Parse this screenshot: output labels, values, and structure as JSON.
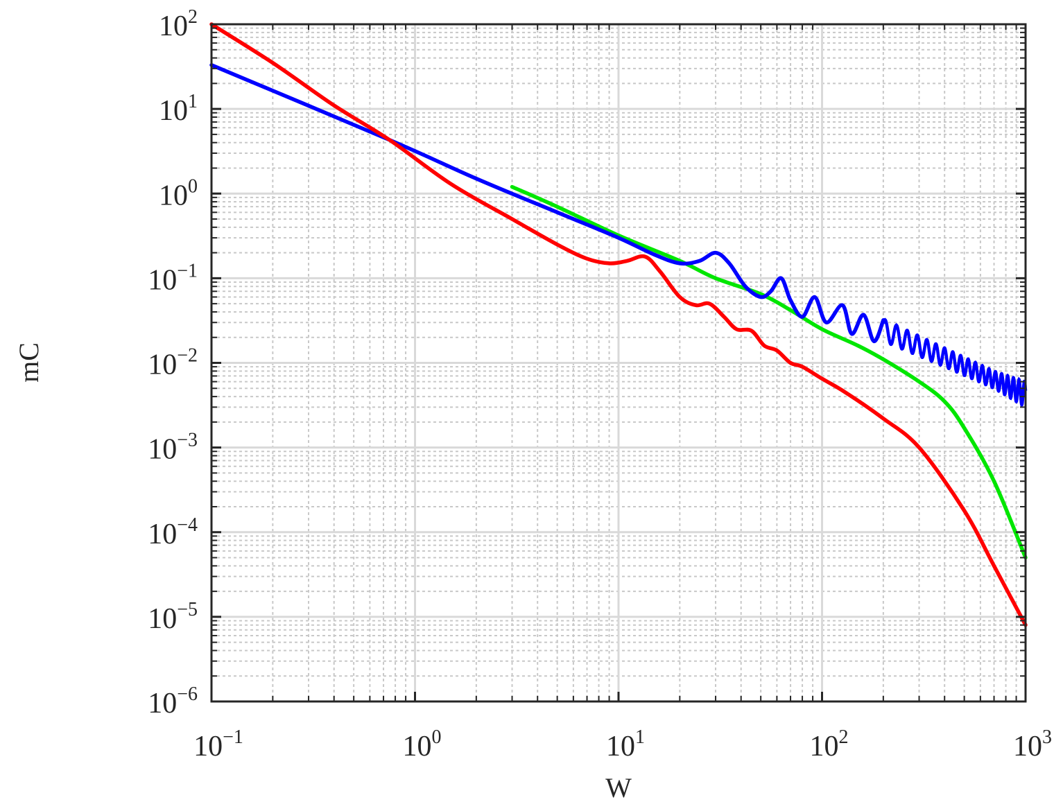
{
  "chart_data": {
    "type": "line",
    "title": "",
    "xlabel": "W",
    "ylabel": "mC",
    "xscale": "log",
    "yscale": "log",
    "xlim": [
      0.1,
      1000
    ],
    "ylim": [
      1e-06,
      100
    ],
    "x_tick_labels": [
      "10^-1",
      "10^0",
      "10^1",
      "10^2",
      "10^3"
    ],
    "y_tick_labels": [
      "10^2",
      "10^1",
      "10^0",
      "10^-1",
      "10^-2",
      "10^-3",
      "10^-4",
      "10^-5",
      "10^-6"
    ],
    "grid": {
      "major": true,
      "minor": true,
      "major_color": "#d9d9d9",
      "minor_style": "dotted"
    },
    "legend": null,
    "series": [
      {
        "name": "red",
        "color": "#ff0000",
        "points": [
          [
            0.1,
            100
          ],
          [
            0.2,
            35
          ],
          [
            0.4,
            11
          ],
          [
            0.75,
            4.3
          ],
          [
            1.5,
            1.3
          ],
          [
            3,
            0.5
          ],
          [
            5,
            0.25
          ],
          [
            7,
            0.17
          ],
          [
            9,
            0.15
          ],
          [
            11,
            0.16
          ],
          [
            13.5,
            0.18
          ],
          [
            16,
            0.12
          ],
          [
            20,
            0.06
          ],
          [
            24,
            0.048
          ],
          [
            28,
            0.05
          ],
          [
            33,
            0.035
          ],
          [
            38,
            0.025
          ],
          [
            45,
            0.024
          ],
          [
            52,
            0.016
          ],
          [
            60,
            0.014
          ],
          [
            70,
            0.01
          ],
          [
            80,
            0.009
          ],
          [
            100,
            0.0065
          ],
          [
            130,
            0.0045
          ],
          [
            200,
            0.0022
          ],
          [
            300,
            0.001
          ],
          [
            500,
            0.00018
          ],
          [
            700,
            4e-05
          ],
          [
            1000,
            8e-06
          ]
        ]
      },
      {
        "name": "green",
        "color": "#00e600",
        "points": [
          [
            3,
            1.2
          ],
          [
            5,
            0.7
          ],
          [
            10,
            0.32
          ],
          [
            20,
            0.16
          ],
          [
            30,
            0.1
          ],
          [
            50,
            0.065
          ],
          [
            70,
            0.042
          ],
          [
            100,
            0.025
          ],
          [
            150,
            0.016
          ],
          [
            200,
            0.011
          ],
          [
            300,
            0.006
          ],
          [
            400,
            0.0035
          ],
          [
            500,
            0.0017
          ],
          [
            700,
            0.0004
          ],
          [
            1000,
            5e-05
          ]
        ]
      },
      {
        "name": "blue",
        "color": "#0000ff",
        "points": [
          [
            0.1,
            33
          ],
          [
            0.75,
            4.3
          ],
          [
            2,
            1.5
          ],
          [
            5,
            0.6
          ],
          [
            10,
            0.3
          ],
          [
            15,
            0.19
          ],
          [
            20,
            0.15
          ],
          [
            25,
            0.16
          ],
          [
            30,
            0.2
          ],
          [
            35,
            0.15
          ],
          [
            42,
            0.08
          ],
          [
            50,
            0.06
          ],
          [
            56,
            0.07
          ],
          [
            63,
            0.1
          ],
          [
            70,
            0.055
          ],
          [
            80,
            0.035
          ],
          [
            92,
            0.06
          ],
          [
            105,
            0.03
          ],
          [
            126,
            0.048
          ],
          [
            140,
            0.022
          ],
          [
            160,
            0.037
          ],
          [
            180,
            0.018
          ],
          [
            200,
            0.032
          ],
          [
            1000,
            "oscillating band ~0.003-0.006"
          ]
        ],
        "envelope_high": [
          [
            100,
            0.06
          ],
          [
            200,
            0.033
          ],
          [
            400,
            0.015
          ],
          [
            700,
            0.008
          ],
          [
            1000,
            0.006
          ]
        ],
        "envelope_low": [
          [
            100,
            0.03
          ],
          [
            200,
            0.018
          ],
          [
            400,
            0.009
          ],
          [
            700,
            0.005
          ],
          [
            1000,
            0.003
          ]
        ]
      }
    ]
  }
}
